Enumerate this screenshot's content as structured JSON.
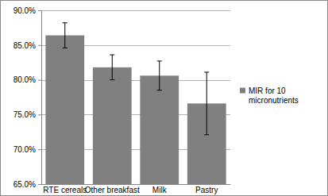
{
  "chart_data": {
    "type": "bar",
    "categories": [
      "RTE cereals",
      "Other breakfast",
      "Milk",
      "Pastry"
    ],
    "series": [
      {
        "name": "MIR for 10 micronutrients",
        "color": "#808080",
        "values": [
          86.4,
          81.8,
          80.6,
          76.6
        ],
        "errors": [
          1.8,
          1.8,
          2.1,
          4.5
        ]
      }
    ],
    "ylim": [
      65,
      90
    ],
    "yticks": [
      {
        "value": 65,
        "label": "65.0%"
      },
      {
        "value": 70,
        "label": "70.0%"
      },
      {
        "value": 75,
        "label": "75.0%"
      },
      {
        "value": 80,
        "label": "80.0%"
      },
      {
        "value": 85,
        "label": "85.0%"
      },
      {
        "value": 90,
        "label": "90.0%"
      }
    ],
    "grid": true,
    "legend": "right"
  }
}
